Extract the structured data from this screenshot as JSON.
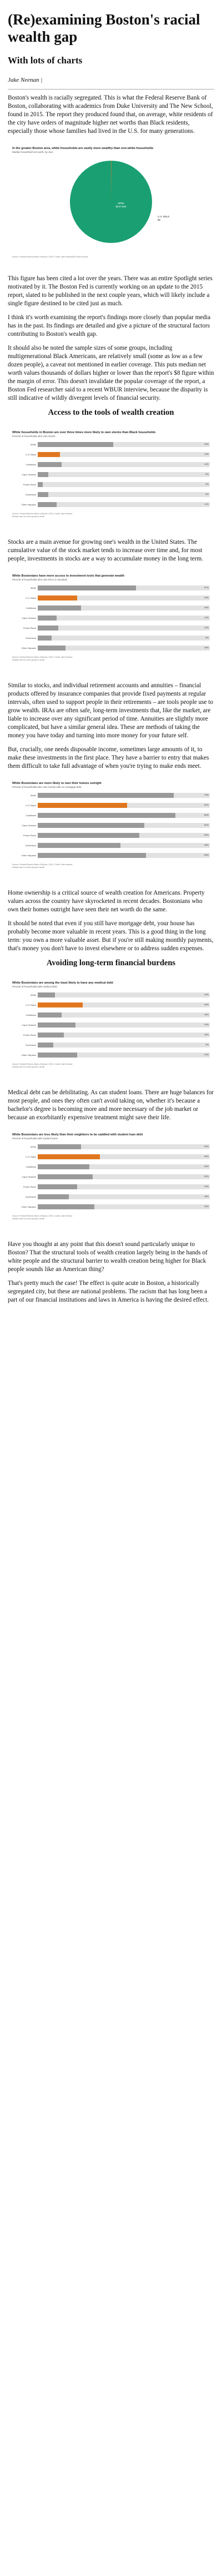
{
  "article": {
    "title": "(Re)examining Boston's racial wealth gap",
    "subtitle": "With lots of charts",
    "byline": "Jake Neenan",
    "byline_sep": "|"
  },
  "colors": {
    "accent": "#e0761f",
    "pie_green": "#1a9f72",
    "bar_grey": "#9a9a9a",
    "track": "#e2e2e2"
  },
  "paragraphs": {
    "p1": "Boston's wealth is racially segregated. This is what the Federal Reserve Bank of Boston, collaborating with academics from Duke University and The New School, found in 2015. The report they produced found that, on average, white residents of the city have orders of magnitude higher net worths than Black residents, especially those whose families had lived in the U.S. for many generations.",
    "p2": "This figure has been cited a lot over the years. There was an entire Spotlight series motivated by it. The Boston Fed is currently working on an update to the 2015 report, slated to be published in the next couple years, which will likely include a single figure destined to be cited just as much.",
    "p3": "I think it's worth examining the report's findings more closely than popular media has in the past. Its findings are detailed and give a picture of the structural factors contributing to Boston's wealth gap.",
    "p4": "It should also be noted the sample sizes of some groups, including multigenerational Black Americans, are relatively small (some as low as a few dozen people), a caveat not mentioned in earlier coverage. This puts median net worth values thousands of dollars higher or lower than the report's $8 figure within the margin of error. This doesn't invalidate the popular coverage of the report, a Boston Fed researcher said to a recent WBUR interview, because the disparity is still indicative of wildly divergent levels of financial security.",
    "p5": "Stocks are a main avenue for growing one's wealth in the United States. The cumulative value of the stock market tends to increase over time and, for most people, investments in stocks are a way to accumulate money in the long term.",
    "p6": "Similar to stocks, and individual retirement accounts and annuities – financial products offered by insurance companies that provide fixed payments at regular intervals, often used to support people in their retirements – are tools people use to grow wealth. IRAs are often safe, long-term investments that, like the market, are liable to increase over any significant period of time. Annuities are slightly more complicated, but have a similar general idea. These are methods of taking the money you have today and turning into more money for your future self.",
    "p7": "But, crucially, one needs disposable income, sometimes large amounts of it, to make these investments in the first place. They have a barrier to entry that makes them difficult to take full advantage of when you're trying to make ends meet.",
    "p8": "Home ownership is a critical source of wealth creation for Americans. Property values across the country have skyrocketed in recent decades. Bostonians who own their homes outright have seen their net worth do the same.",
    "p9": "It should be noted that even if you still have mortgage debt, your house has probably become more valuable in recent years. This is a good thing in the long term: you own a more valuable asset. But if you're still making monthly payments, that's money you don't have to invest elsewhere or to address sudden expenses.",
    "p10": "Medical debt can be debilitating. As can student loans. There are huge balances for most people, and ones they often can't avoid taking on, whether it's because a bachelor's degree is becoming more and more necessary of the job market or because an exorbitantly expensive treatment might save their life.",
    "p11": "Have you thought at any point that this doesn't sound particularly unique to Boston? That the structural tools of wealth creation largely being in the hands of white people and the structural barrier to wealth creation being higher for Black people sounds like an American thing?",
    "p12": "That's pretty much the case! The effect is quite acute in Boston, a historically segregated city, but these are national problems. The racism that has long been a part of our financial institutions and laws in America is having the desired effect."
  },
  "sections": {
    "tools": "Access to the tools of wealth creation",
    "burdens": "Avoiding long-term financial burdens"
  },
  "charts": {
    "c1": {
      "title": "In the greater Boston area, white households are vastly more wealthy than non-white households",
      "subtitle": "Median household net worth, by race",
      "source1": "Source: Federal Reserve Bank of Boston, 2015 • Credit: Jake Neenan/BU News Service"
    },
    "c2": {
      "title": "White households in Boston are over three times more likely to own stocks than Black households",
      "subtitle": "Percent of households who own stocks",
      "source1": "Source: Federal Reserve Bank of Boston, 2015 • Credit: Jake Neenan",
      "source2": "Sample size for some groups is small"
    },
    "c3": {
      "title": "White Bostonians have more access to investment tools that generate wealth",
      "subtitle": "Percent of households who own IRAs or annuities",
      "source1": "Source: Federal Reserve Bank of Boston, 2015 • Credit: Jake Neenan",
      "source2": "Sample size for some groups is small"
    },
    "c4": {
      "title": "White Bostonians are more likely to own their homes outright",
      "subtitle": "Percent of households who own homes with no mortgage debt",
      "source1": "Source: Federal Reserve Bank of Boston, 2015 • Credit: Jake Neenan",
      "source2": "Sample size for some groups is small"
    },
    "c5": {
      "title": "White Bostonians are among the least likely to have any medical debt",
      "subtitle": "Percent of households with medical debt",
      "source1": "Source: Federal Reserve Bank of Boston, 2015 • Credit: Jake Neenan",
      "source2": "Sample size for some groups is small"
    },
    "c6": {
      "title": "White Bostonians are less likely than their neighbors to be saddled with student loan debt",
      "subtitle": "Percent of households with student loans",
      "source1": "Source: Federal Reserve Bank of Boston, 2015 • Credit: Jake Neenan",
      "source2": "Sample size for some groups is small"
    }
  },
  "chart_data": [
    {
      "type": "pie",
      "title": "In the greater Boston area, white households are vastly more wealthy than non-white households",
      "slices": [
        {
          "label": "White",
          "value": 247500,
          "display": "$247,500",
          "color": "#1a9f72"
        },
        {
          "label": "U.S. Black",
          "value": 8,
          "display": "$8",
          "color": "#e0761f"
        }
      ]
    },
    {
      "type": "bar",
      "title": "White households in Boston are over three times more likely to own stocks than Black households",
      "categories": [
        "White",
        "U.S. Black",
        "Caribbean",
        "Cape Verdean",
        "Puerto Rican",
        "Dominican",
        "Other Hispanic"
      ],
      "values": [
        44,
        13,
        14,
        6,
        3,
        6,
        11
      ],
      "highlight": [
        false,
        true,
        false,
        false,
        false,
        false,
        false
      ]
    },
    {
      "type": "bar",
      "title": "White Bostonians have more access to investment tools that generate wealth",
      "categories": [
        "White",
        "U.S. Black",
        "Caribbean",
        "Cape Verdean",
        "Puerto Rican",
        "Dominican",
        "Other Hispanic"
      ],
      "values": [
        57,
        23,
        25,
        11,
        12,
        8,
        16
      ],
      "highlight": [
        false,
        true,
        false,
        false,
        false,
        false,
        false
      ]
    },
    {
      "type": "bar",
      "title": "White Bostonians are more likely to own their homes outright",
      "categories": [
        "White",
        "U.S. Black",
        "Caribbean",
        "Cape Verdean",
        "Puerto Rican",
        "Dominican",
        "Other Hispanic"
      ],
      "values": [
        79,
        52,
        80,
        62,
        59,
        48,
        63
      ],
      "highlight": [
        false,
        true,
        false,
        false,
        false,
        false,
        false
      ]
    },
    {
      "type": "bar",
      "title": "White Bostonians are among the least likely to have any medical debt",
      "categories": [
        "White",
        "U.S. Black",
        "Caribbean",
        "Cape Verdean",
        "Puerto Rican",
        "Dominican",
        "Other Hispanic"
      ],
      "values": [
        10,
        26,
        14,
        22,
        15,
        9,
        23
      ],
      "highlight": [
        false,
        true,
        false,
        false,
        false,
        false,
        false
      ]
    },
    {
      "type": "bar",
      "title": "White Bostonians are less likely than their neighbors to be saddled with student loan debt",
      "categories": [
        "White",
        "U.S. Black",
        "Caribbean",
        "Cape Verdean",
        "Puerto Rican",
        "Dominican",
        "Other Hispanic"
      ],
      "values": [
        25,
        36,
        30,
        32,
        23,
        18,
        33
      ],
      "highlight": [
        false,
        true,
        false,
        false,
        false,
        false,
        false
      ]
    }
  ]
}
